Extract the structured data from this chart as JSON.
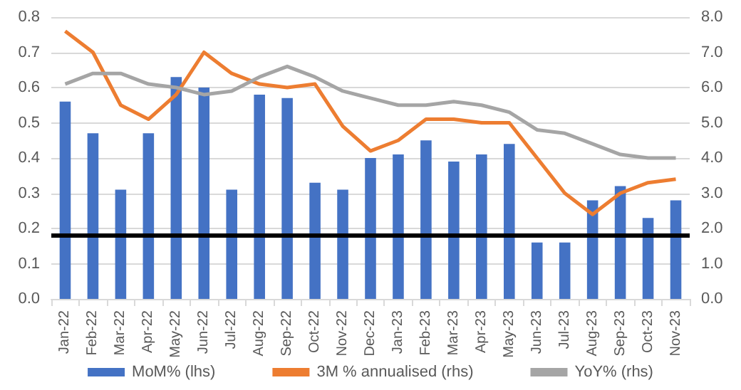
{
  "chart_data": {
    "type": "bar",
    "categories": [
      "Jan-22",
      "Feb-22",
      "Mar-22",
      "Apr-22",
      "May-22",
      "Jun-22",
      "Jul-22",
      "Aug-22",
      "Sep-22",
      "Oct-22",
      "Nov-22",
      "Dec-22",
      "Jan-23",
      "Feb-23",
      "Mar-23",
      "Apr-23",
      "May-23",
      "Jun-23",
      "Jul-23",
      "Aug-23",
      "Sep-23",
      "Oct-23",
      "Nov-23"
    ],
    "series": [
      {
        "name": "MoM% (lhs)",
        "color": "#4472c4",
        "values": [
          0.56,
          0.47,
          0.31,
          0.47,
          0.63,
          0.6,
          0.31,
          0.58,
          0.57,
          0.33,
          0.31,
          0.4,
          0.41,
          0.45,
          0.39,
          0.41,
          0.44,
          0.16,
          0.16,
          0.28,
          0.32,
          0.23,
          0.28
        ]
      },
      {
        "name": "3M % annualised (rhs)",
        "type": "line",
        "axis": "y2",
        "color": "#ed7d31",
        "values": [
          7.6,
          7.0,
          5.5,
          5.1,
          5.8,
          7.0,
          6.4,
          6.1,
          6.0,
          6.1,
          4.9,
          4.2,
          4.5,
          5.1,
          5.1,
          5.0,
          5.0,
          4.0,
          3.0,
          2.4,
          3.0,
          3.3,
          3.4
        ]
      },
      {
        "name": "YoY% (rhs)",
        "type": "line",
        "axis": "y2",
        "color": "#a5a5a5",
        "values": [
          6.1,
          6.4,
          6.4,
          6.1,
          6.0,
          5.8,
          5.9,
          6.3,
          6.6,
          6.3,
          5.9,
          5.7,
          5.5,
          5.5,
          5.6,
          5.5,
          5.3,
          4.8,
          4.7,
          4.4,
          4.1,
          4.0,
          4.0
        ]
      }
    ],
    "ylim": [
      0,
      0.8
    ],
    "yticks": [
      {
        "value": 0,
        "label": "0.0"
      },
      0.1,
      0.2,
      0.3,
      0.4,
      0.5,
      0.6,
      0.7,
      0.8
    ],
    "y2lim": [
      0,
      8
    ],
    "y2ticks": [
      {
        "value": 0,
        "label": "0.0"
      },
      {
        "value": 1,
        "label": "1.0"
      },
      {
        "value": 2,
        "label": "2.0"
      },
      {
        "value": 3,
        "label": "3.0"
      },
      {
        "value": 4,
        "label": "4.0"
      },
      {
        "value": 5,
        "label": "5.0"
      },
      {
        "value": 6,
        "label": "6.0"
      },
      {
        "value": 7,
        "label": "7.0"
      },
      {
        "value": 8,
        "label": "8.0"
      }
    ],
    "ref_lines": [
      {
        "axis": "y",
        "value": 0.18,
        "color": "#000000"
      }
    ],
    "grid": "y",
    "legend": "bottom",
    "marker": "none"
  }
}
